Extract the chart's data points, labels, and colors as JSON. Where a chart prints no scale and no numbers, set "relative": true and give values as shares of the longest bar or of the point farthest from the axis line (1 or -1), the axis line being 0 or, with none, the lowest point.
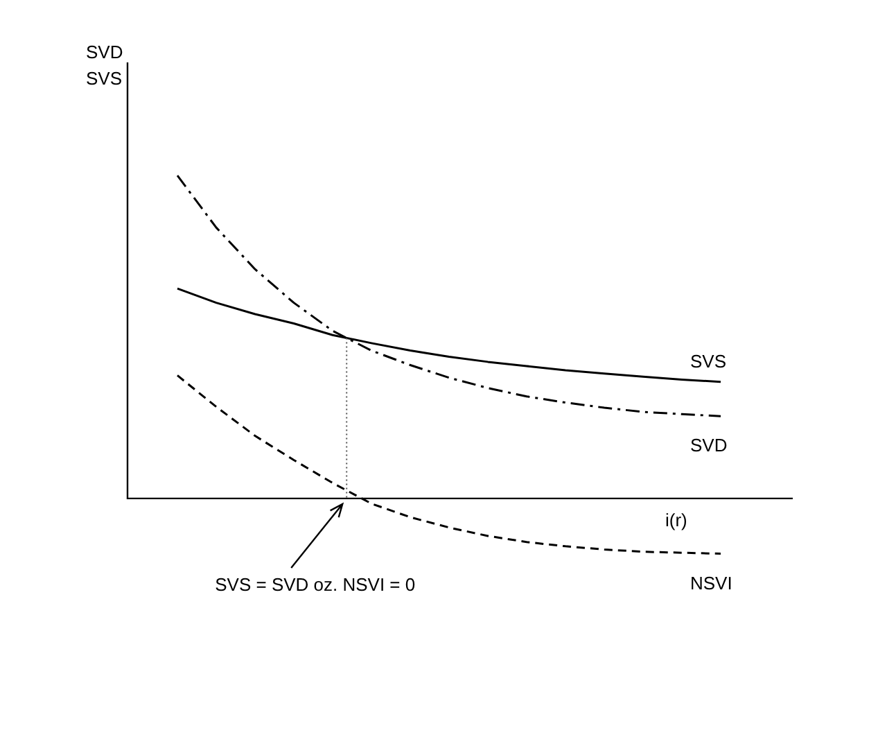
{
  "chart_data": {
    "type": "line",
    "relative": true,
    "xlabel": "i(r)",
    "legend": false,
    "marker": "none",
    "categories": [
      null,
      null,
      null,
      null,
      null,
      null,
      null,
      null,
      null,
      null,
      null,
      null,
      null,
      null,
      null
    ],
    "series": [
      {
        "name": "SVS",
        "color": "#000000",
        "line_style": "solid",
        "values": [
          0.65,
          0.606,
          0.571,
          0.542,
          0.506,
          0.481,
          0.458,
          0.439,
          0.423,
          0.41,
          0.397,
          0.387,
          0.377,
          0.368,
          0.361
        ]
      },
      {
        "name": "SVD",
        "color": "#000000",
        "line_style": "dashdot",
        "values": [
          1.0,
          0.839,
          0.71,
          0.606,
          0.519,
          0.458,
          0.413,
          0.374,
          0.342,
          0.316,
          0.297,
          0.281,
          0.268,
          0.261,
          0.255
        ]
      },
      {
        "name": "NSVI",
        "color": "#000000",
        "line_style": "dashed",
        "values": [
          0.381,
          0.284,
          0.194,
          0.119,
          0.048,
          -0.016,
          -0.058,
          -0.09,
          -0.116,
          -0.135,
          -0.148,
          -0.158,
          -0.165,
          -0.168,
          -0.171
        ]
      }
    ],
    "annotations": [
      "SVD\nSVS",
      "SVS = SVD oz. NSVI = 0"
    ]
  }
}
